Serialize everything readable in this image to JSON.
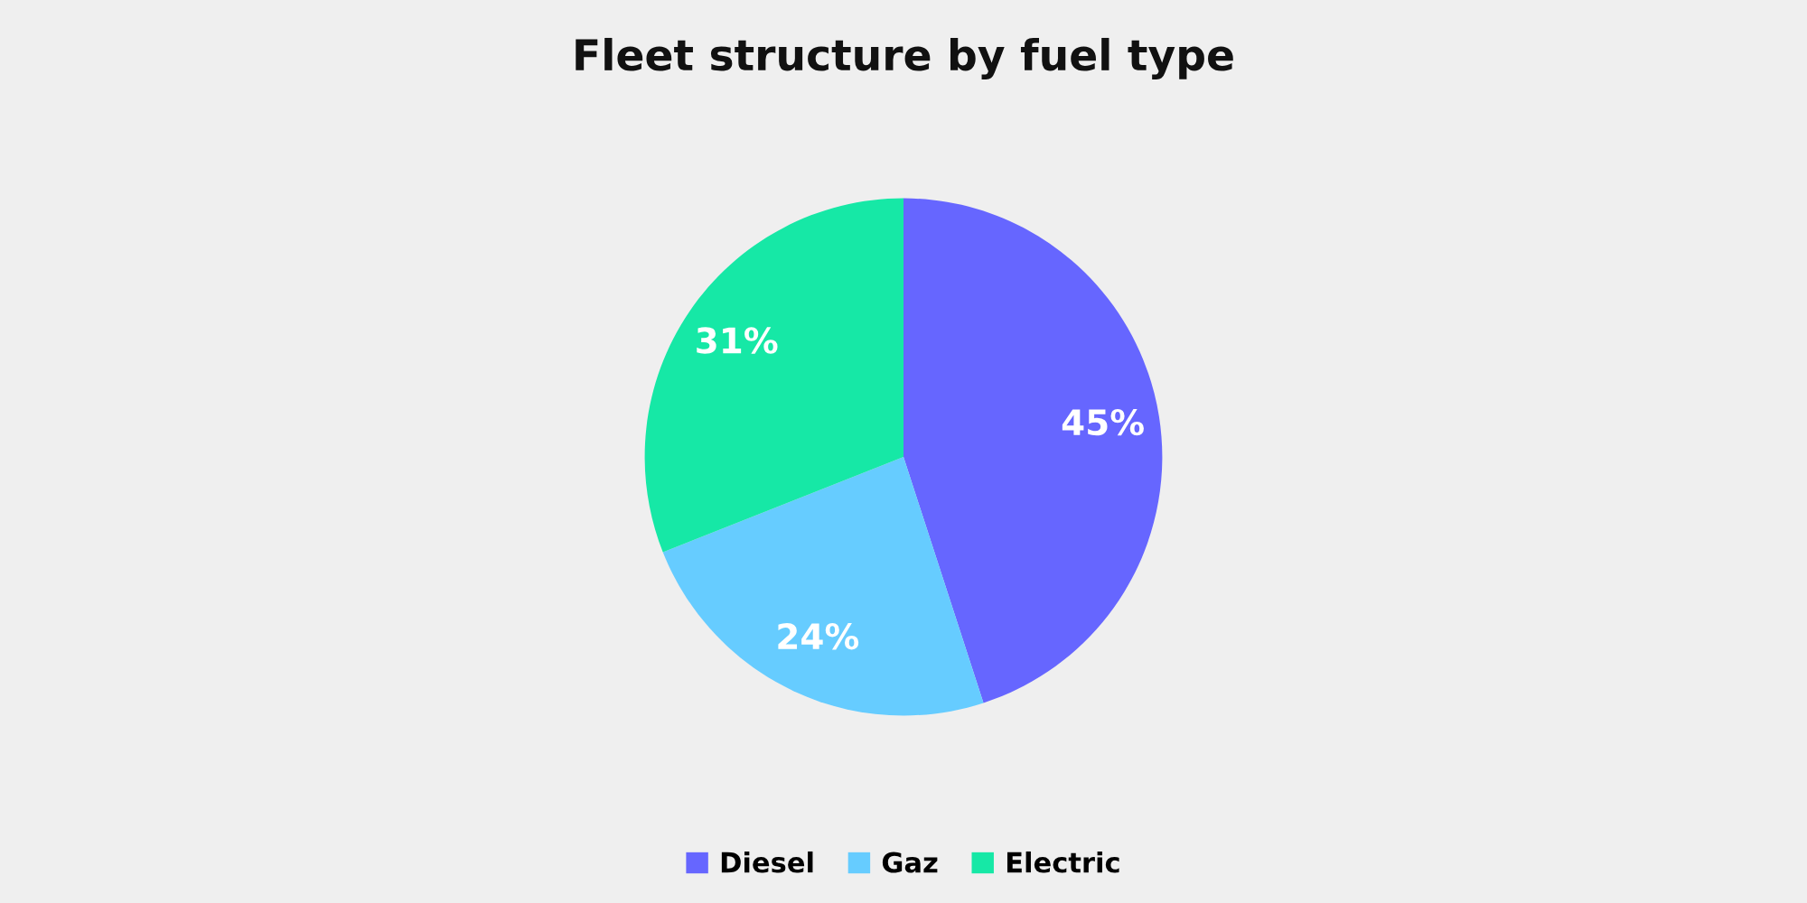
{
  "chart_data": {
    "type": "pie",
    "title": "Fleet structure by fuel type",
    "categories": [
      "Diesel",
      "Gaz",
      "Electric"
    ],
    "values": [
      45,
      24,
      31
    ],
    "colors": [
      "#6666ff",
      "#66ccff",
      "#16e8a6"
    ],
    "value_labels": [
      "45%",
      "24%",
      "31%"
    ],
    "legend": "bottom"
  }
}
